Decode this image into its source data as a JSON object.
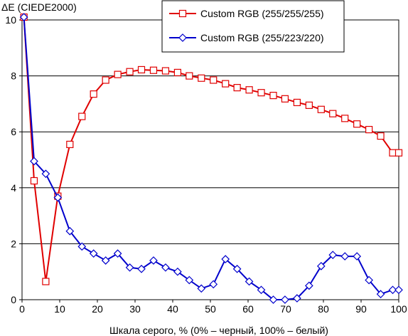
{
  "chart_data": {
    "type": "line",
    "ylabel": "ΔE (CIEDE2000)",
    "xlabel": "Шкала серого, % (0% – черный, 100% – белый)",
    "xlim": [
      0,
      100
    ],
    "ylim": [
      0,
      10
    ],
    "x_ticks": [
      0,
      10,
      20,
      30,
      40,
      50,
      60,
      70,
      80,
      90,
      100
    ],
    "y_ticks": [
      0,
      2,
      4,
      6,
      8,
      10
    ],
    "grid": "horizontal",
    "legend_position": "top-right",
    "x": [
      0.5,
      3.2,
      6.3,
      9.5,
      12.7,
      15.9,
      19.0,
      22.2,
      25.4,
      28.6,
      31.7,
      34.9,
      38.1,
      41.3,
      44.4,
      47.6,
      50.8,
      54.0,
      57.1,
      60.3,
      63.5,
      66.7,
      69.8,
      73.0,
      76.2,
      79.4,
      82.5,
      85.7,
      88.9,
      92.1,
      95.2,
      98.4,
      100
    ],
    "series": [
      {
        "name": "Custom RGB (255/255/255)",
        "color": "#e00000",
        "marker": "square",
        "values": [
          10.1,
          4.25,
          0.65,
          3.7,
          5.55,
          6.55,
          7.35,
          7.85,
          8.05,
          8.15,
          8.22,
          8.2,
          8.18,
          8.12,
          8.0,
          7.92,
          7.85,
          7.72,
          7.58,
          7.5,
          7.4,
          7.3,
          7.18,
          7.05,
          6.95,
          6.8,
          6.65,
          6.48,
          6.28,
          6.08,
          5.85,
          5.25,
          5.25
        ]
      },
      {
        "name": "Custom RGB (255/223/220)",
        "color": "#0000cc",
        "marker": "diamond",
        "values": [
          10.1,
          4.95,
          4.5,
          3.65,
          2.45,
          1.9,
          1.65,
          1.4,
          1.65,
          1.15,
          1.1,
          1.4,
          1.15,
          1.0,
          0.7,
          0.4,
          0.55,
          1.45,
          1.1,
          0.65,
          0.35,
          0.0,
          0.0,
          0.05,
          0.5,
          1.2,
          1.6,
          1.55,
          1.55,
          0.7,
          0.2,
          0.35,
          0.35
        ]
      }
    ]
  }
}
